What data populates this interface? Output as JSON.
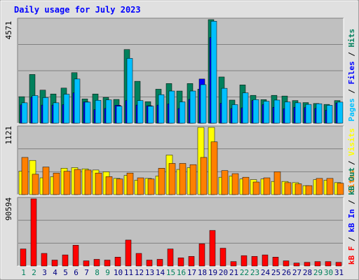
{
  "title": "Daily usage for July 2023",
  "colors": {
    "hits": "#00805c",
    "files": "#0000ff",
    "pages": "#00c0ff",
    "visits": "#ffff00",
    "sites": "#ff8000",
    "kbin": "#0000ff",
    "kbout": "#00805c",
    "kbf": "#ff0000",
    "panel_bg": "#c0c0c0",
    "frame_bg": "#e0e0e0",
    "weekend_day": "#00805c",
    "weekday_day": "#000080"
  },
  "legends": {
    "top": [
      {
        "text": "Pages",
        "color": "#00c0ff"
      },
      {
        "text": " / ",
        "color": "#000000"
      },
      {
        "text": "Files",
        "color": "#0000ff"
      },
      {
        "text": " / ",
        "color": "#000000"
      },
      {
        "text": "Hits",
        "color": "#00805c"
      }
    ],
    "mid": [
      {
        "text": "Sites",
        "color": "#ff8000"
      },
      {
        "text": " / ",
        "color": "#000000"
      },
      {
        "text": "Visits",
        "color": "#ffff00"
      }
    ],
    "bot": [
      {
        "text": "kB F",
        "color": "#ff0000"
      },
      {
        "text": " / ",
        "color": "#000000"
      },
      {
        "text": "kB In",
        "color": "#0000ff"
      },
      {
        "text": " / ",
        "color": "#000000"
      },
      {
        "text": "kB Out",
        "color": "#00805c"
      }
    ]
  },
  "chart_data": {
    "type": "bar",
    "days": [
      1,
      2,
      3,
      4,
      5,
      6,
      7,
      8,
      9,
      10,
      11,
      12,
      13,
      14,
      15,
      16,
      17,
      18,
      19,
      20,
      21,
      22,
      23,
      24,
      25,
      26,
      27,
      28,
      29,
      30,
      31
    ],
    "weekend_days": [
      1,
      2,
      8,
      9,
      15,
      16,
      22,
      23,
      29,
      30
    ],
    "panels": [
      {
        "name": "hits-files-pages",
        "ymax_label": "4571",
        "ymax": 4571,
        "series": [
          {
            "name": "Hits",
            "key": "hits",
            "values": [
              1170,
              2150,
              1460,
              1290,
              1550,
              2230,
              1070,
              1290,
              1140,
              1050,
              3250,
              1850,
              950,
              1500,
              1750,
              1420,
              1750,
              1500,
              4571,
              2040,
              1020,
              1690,
              1230,
              1040,
              1230,
              1200,
              1000,
              910,
              870,
              830,
              1000
            ]
          },
          {
            "name": "Files",
            "key": "files",
            "values": [
              810,
              1150,
              800,
              800,
              820,
              1340,
              940,
              600,
              650,
              790,
              1000,
              800,
              770,
              800,
              850,
              650,
              1050,
              1950,
              3780,
              880,
              650,
              680,
              1000,
              820,
              700,
              640,
              700,
              690,
              650,
              570,
              890
            ]
          },
          {
            "name": "Pages",
            "key": "pages",
            "values": [
              900,
              1220,
              1130,
              900,
              1280,
              1950,
              930,
              1010,
              1030,
              750,
              2860,
              1000,
              750,
              1260,
              1420,
              940,
              1420,
              1700,
              4500,
              1540,
              820,
              1340,
              1040,
              970,
              1020,
              940,
              900,
              830,
              860,
              790,
              930
            ]
          }
        ]
      },
      {
        "name": "visits-sites",
        "ymax_label": "1121",
        "ymax": 1121,
        "series": [
          {
            "name": "Visits",
            "key": "visits",
            "values": [
              390,
              570,
              280,
              300,
              440,
              450,
              430,
              410,
              380,
              270,
              320,
              240,
              270,
              310,
              660,
              420,
              450,
              1121,
              1121,
              290,
              310,
              260,
              250,
              260,
              220,
              220,
              200,
              150,
              250,
              240,
              200
            ]
          },
          {
            "name": "Sites",
            "key": "sites",
            "values": [
              620,
              340,
              460,
              360,
              390,
              420,
              410,
              360,
              300,
              260,
              360,
              280,
              260,
              440,
              520,
              520,
              500,
              620,
              880,
              400,
              350,
              290,
              210,
              280,
              380,
              200,
              180,
              150,
              270,
              270,
              190
            ]
          }
        ]
      },
      {
        "name": "kb",
        "ymax_label": "90594",
        "ymax": 90594,
        "series": [
          {
            "name": "kB F",
            "key": "kbf",
            "values": [
              23000,
              90594,
              17000,
              8000,
              15000,
              28000,
              7000,
              9000,
              8000,
              12000,
              35000,
              17000,
              8000,
              9000,
              23000,
              11000,
              13000,
              30000,
              48000,
              24000,
              6000,
              14000,
              13000,
              15000,
              12000,
              7000,
              4000,
              5000,
              6000,
              6000,
              5000
            ]
          }
        ]
      }
    ]
  }
}
